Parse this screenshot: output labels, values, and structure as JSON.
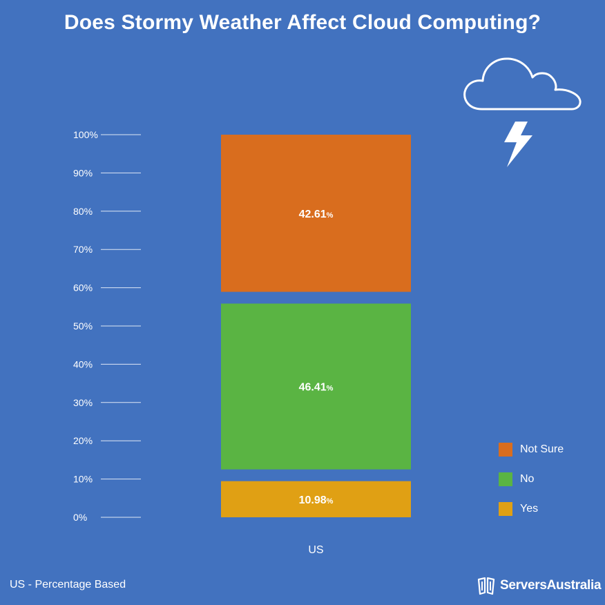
{
  "title": "Does Stormy Weather Affect Cloud Computing?",
  "footnote": "US - Percentage Based",
  "brand": {
    "name": "ServersAustralia"
  },
  "icons": [
    "cloud-icon",
    "lightning-icon",
    "servers-australia-logo-icon"
  ],
  "chart_data": {
    "type": "bar",
    "stacked": true,
    "categories": [
      "US"
    ],
    "series": [
      {
        "name": "Yes",
        "values": [
          10.98
        ],
        "label": "10.98",
        "color": "#e0a014"
      },
      {
        "name": "No",
        "values": [
          46.41
        ],
        "label": "46.41",
        "color": "#5ab443"
      },
      {
        "name": "Not Sure",
        "values": [
          42.61
        ],
        "label": "42.61",
        "color": "#d96d1e"
      }
    ],
    "value_suffix": "%",
    "ylim": [
      0,
      100
    ],
    "yticks": [
      "0%",
      "10%",
      "20%",
      "30%",
      "40%",
      "50%",
      "60%",
      "70%",
      "80%",
      "90%",
      "100%"
    ],
    "legend_order": [
      "Not Sure",
      "No",
      "Yes"
    ],
    "xlabel": "",
    "ylabel": ""
  }
}
